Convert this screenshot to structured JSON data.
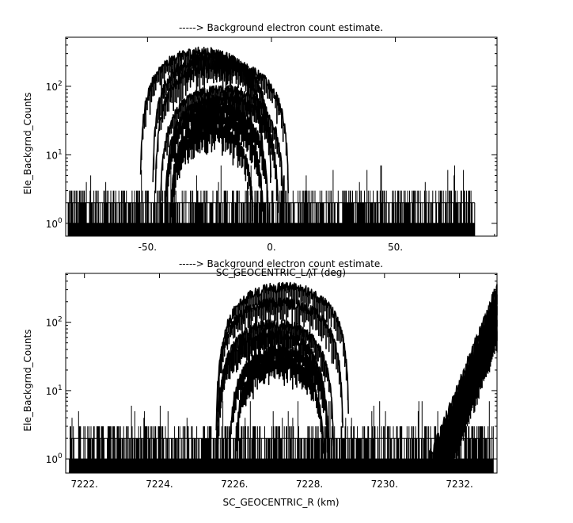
{
  "chart_data": [
    {
      "type": "line",
      "title": "-----> Background electron count estimate.",
      "xlabel": "SC_GEOCENTRIC_LAT (deg)",
      "ylabel": "Ele_Backgrnd_Counts",
      "xlim": [
        -83,
        91
      ],
      "ylim": [
        0.65,
        520
      ],
      "yscale": "log",
      "grid": false,
      "x_ticks": [
        -50,
        0,
        50
      ],
      "x_tick_labels": [
        "-50.",
        "0.",
        "50."
      ],
      "y_ticks": [
        1,
        10,
        100
      ],
      "y_tick_labels": [
        "10",
        "10",
        "10"
      ],
      "y_tick_exponents": [
        "0",
        "1",
        "2"
      ],
      "noise_floor": {
        "x_range": [
          -82,
          82
        ],
        "values": [
          1,
          2,
          3
        ],
        "max_spike": 8
      },
      "series": [
        {
          "center": -28,
          "half_width": 25,
          "peak": 320
        },
        {
          "center": -24,
          "half_width": 24,
          "peak": 270
        },
        {
          "center": -20,
          "half_width": 27,
          "peak": 210
        },
        {
          "center": -20,
          "half_width": 25,
          "peak": 90
        },
        {
          "center": -20,
          "half_width": 23,
          "peak": 70
        },
        {
          "center": -22,
          "half_width": 21,
          "peak": 50
        },
        {
          "center": -22,
          "half_width": 19,
          "peak": 35
        },
        {
          "center": -24,
          "half_width": 17,
          "peak": 25
        }
      ]
    },
    {
      "type": "line",
      "title": "-----> Background electron count estimate.",
      "xlabel": "SC_GEOCENTRIC_R (km)",
      "ylabel": "Ele_Backgrnd_Counts",
      "xlim": [
        7221.5,
        7233.0
      ],
      "ylim": [
        0.62,
        520
      ],
      "yscale": "log",
      "grid": false,
      "x_ticks": [
        7222,
        7224,
        7226,
        7228,
        7230,
        7232
      ],
      "x_tick_labels": [
        "7222.",
        "7224.",
        "7226.",
        "7228.",
        "7230.",
        "7232."
      ],
      "y_ticks": [
        1,
        10,
        100
      ],
      "y_tick_labels": [
        "10",
        "10",
        "10"
      ],
      "y_tick_exponents": [
        "0",
        "1",
        "2"
      ],
      "noise_floor": {
        "x_range": [
          7221.6,
          7232.9
        ],
        "values": [
          1,
          2,
          3
        ],
        "max_spike": 8
      },
      "series": [
        {
          "center": 7227.3,
          "half_width": 1.75,
          "peak": 330
        },
        {
          "center": 7227.2,
          "half_width": 1.7,
          "peak": 200
        },
        {
          "center": 7227.1,
          "half_width": 1.55,
          "peak": 95
        },
        {
          "center": 7227.0,
          "half_width": 1.5,
          "peak": 70
        },
        {
          "center": 7227.2,
          "half_width": 1.35,
          "peak": 40
        },
        {
          "center": 7227.2,
          "half_width": 1.2,
          "peak": 28
        }
      ],
      "rising_edge": {
        "x_start": 7231.2,
        "x_end": 7233.0,
        "peak_values": [
          330,
          250,
          180,
          130,
          90
        ]
      }
    }
  ]
}
